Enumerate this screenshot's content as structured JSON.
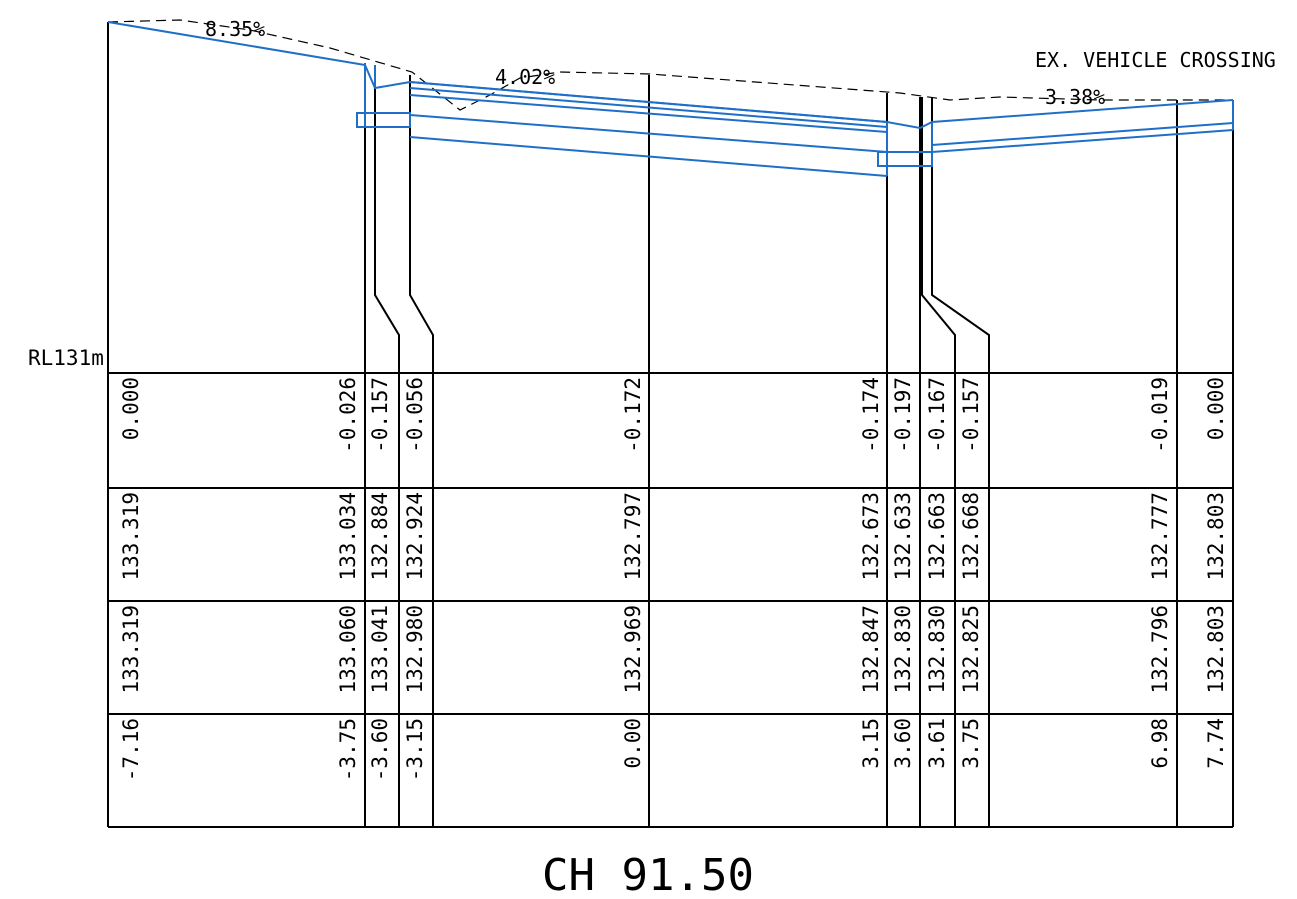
{
  "section": {
    "title": "CH 91.50",
    "datum_label": "RL131m",
    "crossing_label": "EX. VEHICLE CROSSING",
    "grades": [
      "8.35%",
      "4.02%",
      "3.38%"
    ]
  },
  "table": {
    "columns": [
      {
        "depth": "0.000",
        "design": "133.319",
        "existing": "133.319",
        "offset": "-7.16"
      },
      {
        "depth": "-0.026",
        "design": "133.034",
        "existing": "133.060",
        "offset": "-3.75"
      },
      {
        "depth": "-0.157",
        "design": "132.884",
        "existing": "133.041",
        "offset": "-3.60"
      },
      {
        "depth": "-0.056",
        "design": "132.924",
        "existing": "132.980",
        "offset": "-3.15"
      },
      {
        "depth": "-0.172",
        "design": "132.797",
        "existing": "132.969",
        "offset": "0.00"
      },
      {
        "depth": "-0.174",
        "design": "132.673",
        "existing": "132.847",
        "offset": "3.15"
      },
      {
        "depth": "-0.197",
        "design": "132.633",
        "existing": "132.830",
        "offset": "3.60"
      },
      {
        "depth": "-0.167",
        "design": "132.663",
        "existing": "132.830",
        "offset": "3.61"
      },
      {
        "depth": "-0.157",
        "design": "132.668",
        "existing": "132.825",
        "offset": "3.75"
      },
      {
        "depth": "-0.019",
        "design": "132.777",
        "existing": "132.796",
        "offset": "6.98"
      },
      {
        "depth": "0.000",
        "design": "132.803",
        "existing": "132.803",
        "offset": "7.74"
      }
    ]
  },
  "colors": {
    "design_line": "#1f6fc9",
    "linework": "#000000"
  }
}
